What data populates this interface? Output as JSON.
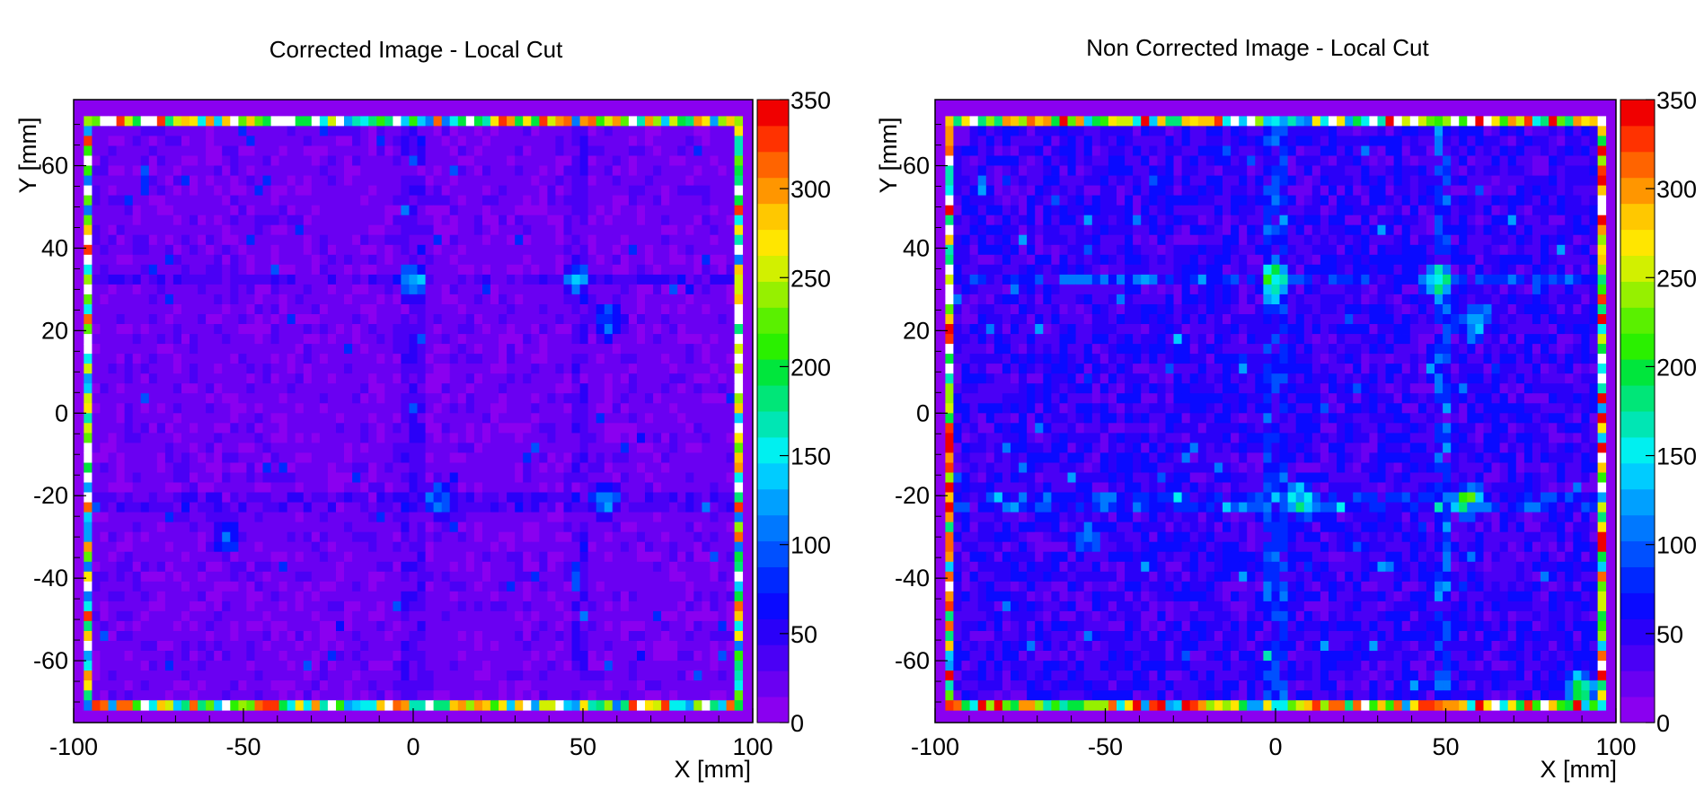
{
  "chart_data": [
    {
      "type": "heatmap",
      "title": "Corrected Image - Local Cut",
      "xlabel": "X [mm]",
      "ylabel": "Y [mm]",
      "xlim": [
        -100,
        100
      ],
      "ylim": [
        -75,
        76
      ],
      "x_ticks": [
        "-100",
        "-50",
        "0",
        "50",
        "100"
      ],
      "y_ticks": [
        "60",
        "40",
        "20",
        "0",
        "-20",
        "-40",
        "-60"
      ],
      "colorbar": {
        "range": [
          0,
          350
        ],
        "ticks": [
          "0",
          "50",
          "100",
          "150",
          "200",
          "250",
          "300",
          "350"
        ]
      },
      "background_level": 20,
      "features": [
        {
          "kind": "hot-frame-edge",
          "level": 300
        },
        {
          "kind": "spot",
          "x": 0,
          "y": 32,
          "level": 110
        },
        {
          "kind": "spot",
          "x": 48,
          "y": 32,
          "level": 110
        },
        {
          "kind": "spot",
          "x": 58,
          "y": 22,
          "level": 100
        },
        {
          "kind": "spot",
          "x": 8,
          "y": -21,
          "level": 100
        },
        {
          "kind": "spot",
          "x": 57,
          "y": -21,
          "level": 110
        },
        {
          "kind": "spot",
          "x": -55,
          "y": -30,
          "level": 90
        }
      ]
    },
    {
      "type": "heatmap",
      "title": "Non Corrected Image - Local Cut",
      "xlabel": "X [mm]",
      "ylabel": "Y [mm]",
      "xlim": [
        -100,
        100
      ],
      "ylim": [
        -75,
        76
      ],
      "x_ticks": [
        "-100",
        "-50",
        "0",
        "50",
        "100"
      ],
      "y_ticks": [
        "60",
        "40",
        "20",
        "0",
        "-20",
        "-40",
        "-60"
      ],
      "colorbar": {
        "range": [
          0,
          350
        ],
        "ticks": [
          "0",
          "50",
          "100",
          "150",
          "200",
          "250",
          "300",
          "350"
        ]
      },
      "background_level": 45,
      "features": [
        {
          "kind": "hot-frame-edge",
          "level": 330
        },
        {
          "kind": "spot",
          "x": 0,
          "y": 32,
          "level": 150
        },
        {
          "kind": "spot",
          "x": 48,
          "y": 32,
          "level": 150
        },
        {
          "kind": "spot",
          "x": 58,
          "y": 22,
          "level": 140
        },
        {
          "kind": "spot",
          "x": 8,
          "y": -21,
          "level": 150
        },
        {
          "kind": "spot",
          "x": 57,
          "y": -21,
          "level": 160
        },
        {
          "kind": "spot",
          "x": -55,
          "y": -30,
          "level": 120
        },
        {
          "kind": "spot",
          "x": 90,
          "y": -67,
          "level": 200
        }
      ]
    }
  ],
  "palette": [
    "#8a00f0",
    "#6a00f2",
    "#4a00f5",
    "#2a00f8",
    "#0a0aff",
    "#0028ff",
    "#0050ff",
    "#0078ff",
    "#00a0ff",
    "#00ccff",
    "#00f0f0",
    "#00e6b4",
    "#00e678",
    "#00e63c",
    "#2af000",
    "#5af000",
    "#96f000",
    "#d2f000",
    "#ffe600",
    "#ffc800",
    "#ff9600",
    "#ff6400",
    "#ff3200",
    "#f00000"
  ]
}
